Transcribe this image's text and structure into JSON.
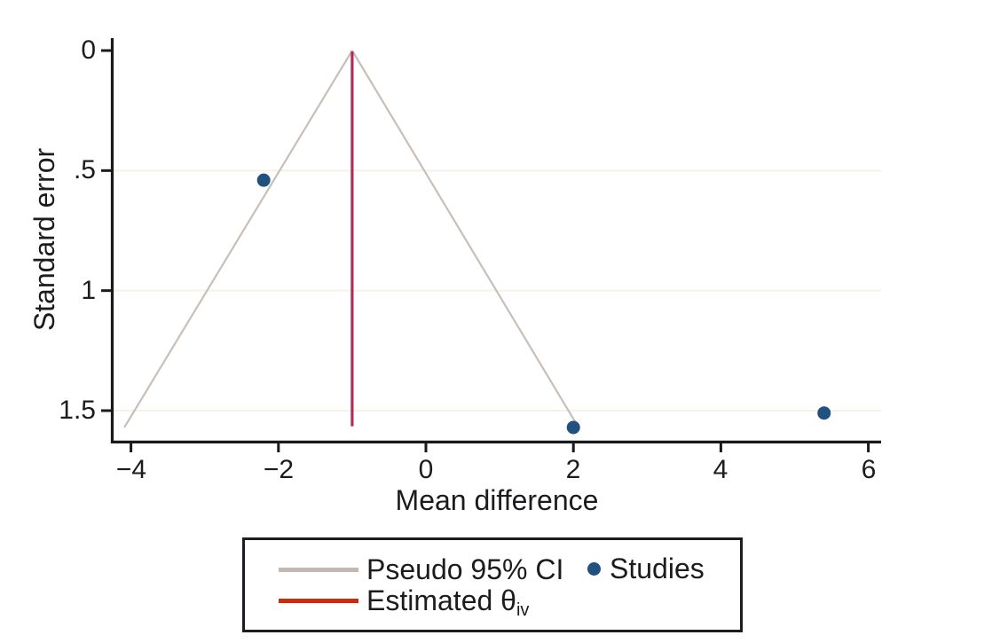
{
  "chart_data": {
    "type": "scatter",
    "title": "",
    "xlabel": "Mean difference",
    "ylabel": "Standard error",
    "x_tick_labels": [
      "−4",
      "−2",
      "0",
      "2",
      "4",
      "6"
    ],
    "x_tick_values": [
      -4,
      -2,
      0,
      2,
      4,
      6
    ],
    "y_tick_labels": [
      "0",
      ".5",
      "1",
      "1.5"
    ],
    "y_tick_values": [
      0,
      0.5,
      1,
      1.5
    ],
    "y_axis_inverted": true,
    "xlim": [
      -4.3,
      6.2
    ],
    "ylim": [
      0,
      1.63
    ],
    "gridlines_y": [
      0.5,
      1,
      1.5
    ],
    "studies": [
      {
        "mean_difference": -2.2,
        "standard_error": 0.54
      },
      {
        "mean_difference": 2.0,
        "standard_error": 1.57
      },
      {
        "mean_difference": 5.4,
        "standard_error": 1.51
      }
    ],
    "estimate_line": {
      "x": -1.0,
      "se_from": 0.0,
      "se_to": 1.565
    },
    "pseudo_ci": {
      "apex_x": -1.0,
      "apex_se": 0.0,
      "left_end": {
        "x": -4.09,
        "se": 1.57
      },
      "right_end": {
        "x": 2.07,
        "se": 1.57
      }
    },
    "legend": {
      "pseudo_ci_label": "Pseudo 95% CI",
      "estimated_label_main": "Estimated θ",
      "estimated_label_sub": "iv",
      "studies_label": "Studies"
    }
  },
  "colors": {
    "background": "#ffffff",
    "axis": "#1a1a1a",
    "text": "#1c1c1e",
    "study_dot": "#21517e",
    "estimate_line": "#b12d58",
    "pseudo_ci_line": "#c8bfb8",
    "legend_ci_swatch": "#c2bab2",
    "legend_estimate_swatch": "#cc2c0d",
    "legend_border": "#1d1d21",
    "gridline": "#f7f2e9"
  }
}
